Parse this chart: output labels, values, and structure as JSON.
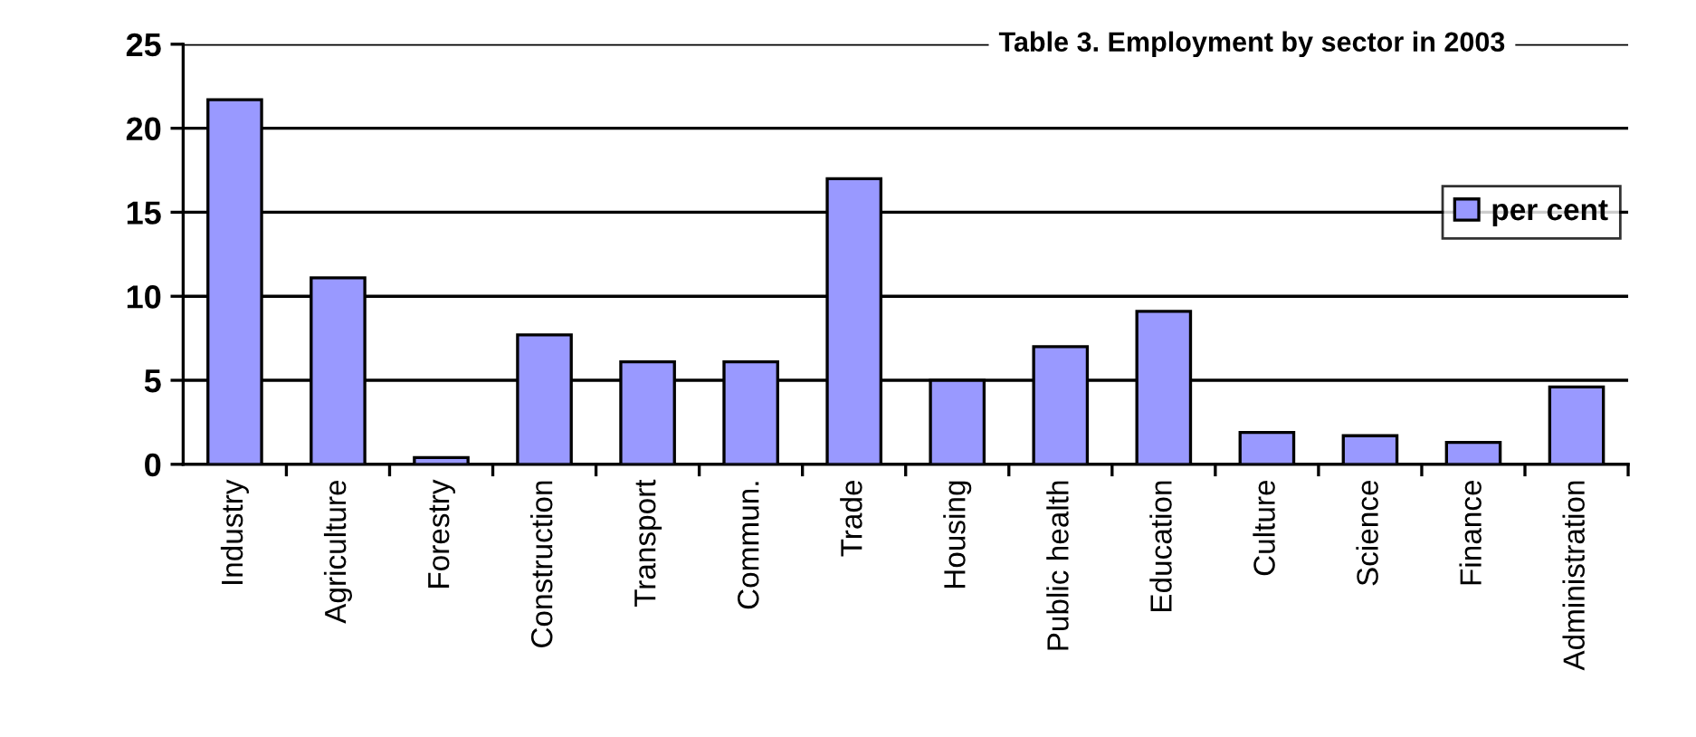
{
  "chart_data": {
    "type": "bar",
    "title": "Table 3. Employment by sector in 2003",
    "categories": [
      "Industry",
      "Agriculture",
      "Forestry",
      "Construction",
      "Transport",
      "Commun.",
      "Trade",
      "Housing",
      "Public health",
      "Education",
      "Culture",
      "Science",
      "Finance",
      "Administration"
    ],
    "series": [
      {
        "name": "per cent",
        "color": "#9999ff",
        "values": [
          21.7,
          11.1,
          0.4,
          7.7,
          6.1,
          6.1,
          17.0,
          5.0,
          7.0,
          9.1,
          1.9,
          1.7,
          1.3,
          4.6
        ]
      }
    ],
    "ylim": [
      0,
      25
    ],
    "yticks": [
      0,
      5,
      10,
      15,
      20,
      25
    ],
    "grid": "y",
    "legend": "right"
  }
}
